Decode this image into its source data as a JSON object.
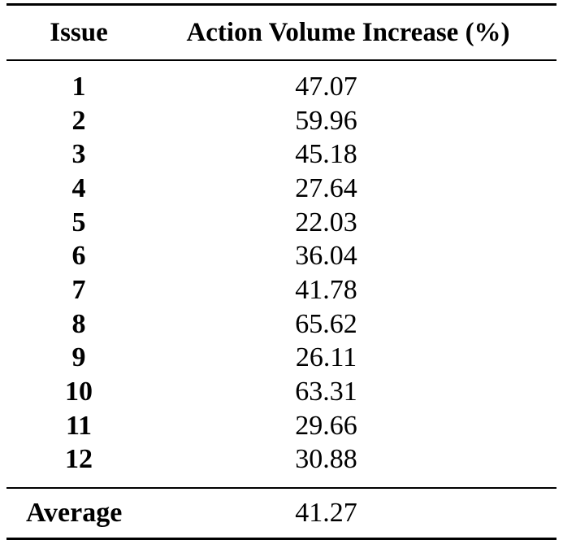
{
  "table": {
    "headers": {
      "issue": "Issue",
      "value": "Action Volume Increase (%)"
    },
    "rows": [
      {
        "issue": "1",
        "value": "47.07"
      },
      {
        "issue": "2",
        "value": "59.96"
      },
      {
        "issue": "3",
        "value": "45.18"
      },
      {
        "issue": "4",
        "value": "27.64"
      },
      {
        "issue": "5",
        "value": "22.03"
      },
      {
        "issue": "6",
        "value": "36.04"
      },
      {
        "issue": "7",
        "value": "41.78"
      },
      {
        "issue": "8",
        "value": "65.62"
      },
      {
        "issue": "9",
        "value": "26.11"
      },
      {
        "issue": "10",
        "value": "63.31"
      },
      {
        "issue": "11",
        "value": "29.66"
      },
      {
        "issue": "12",
        "value": "30.88"
      }
    ],
    "footer": {
      "label": "Average",
      "value": "41.27"
    }
  }
}
